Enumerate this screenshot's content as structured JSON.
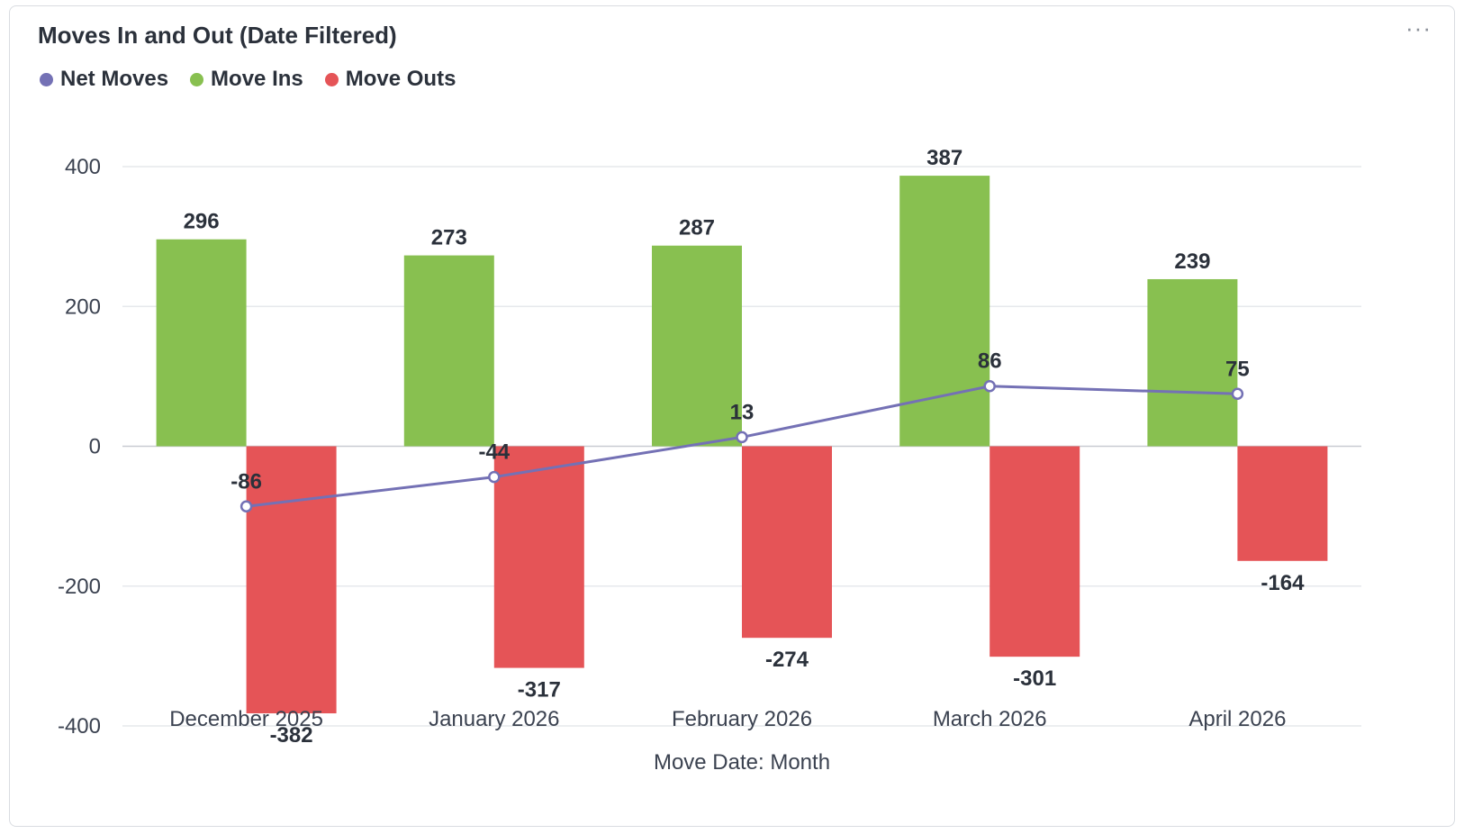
{
  "header": {
    "title": "Moves In and Out (Date Filtered)",
    "menu_label": "···"
  },
  "legend": [
    {
      "label": "Net Moves",
      "color": "#7471b5"
    },
    {
      "label": "Move Ins",
      "color": "#88c050"
    },
    {
      "label": "Move Outs",
      "color": "#e55457"
    }
  ],
  "chart_data": {
    "type": "bar",
    "categories": [
      "December 2025",
      "January 2026",
      "February 2026",
      "March 2026",
      "April 2026"
    ],
    "series": [
      {
        "name": "Move Ins",
        "type": "bar",
        "color": "#88c050",
        "values": [
          296,
          273,
          287,
          387,
          239
        ]
      },
      {
        "name": "Move Outs",
        "type": "bar",
        "color": "#e55457",
        "values": [
          -382,
          -317,
          -274,
          -301,
          -164
        ]
      },
      {
        "name": "Net Moves",
        "type": "line",
        "color": "#7471b5",
        "values": [
          -86,
          -44,
          13,
          86,
          75
        ]
      }
    ],
    "xlabel": "Move Date: Month",
    "ylabel": "",
    "ylim": [
      -400,
      400
    ],
    "yticks": [
      400,
      200,
      0,
      -200,
      -400
    ],
    "grid": true,
    "legend_position": "top-left"
  }
}
